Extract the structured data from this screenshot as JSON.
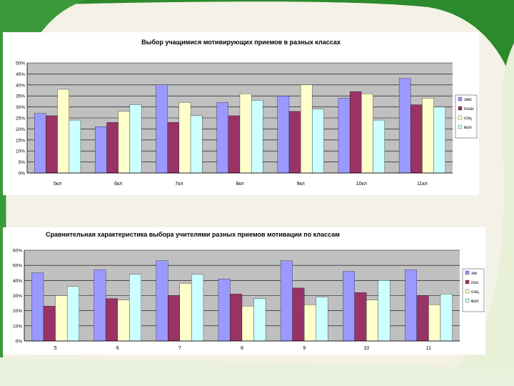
{
  "colors": {
    "plot_bg": "#c0c0c0",
    "grid": "#000000",
    "series": [
      "#9999ff",
      "#993366",
      "#ffffcc",
      "#ccffff"
    ],
    "frame_green": "#2f8f2f",
    "frame_light": "#e9f2dc"
  },
  "chart_data": [
    {
      "type": "bar",
      "title": "Выбор учащимися мотивирующих приемов в разных классах",
      "categories": [
        "5кл",
        "6кл",
        "7кл",
        "8кл",
        "9кл",
        "10кл",
        "11кл"
      ],
      "yticks": [
        "0%",
        "5%",
        "10%",
        "15%",
        "20%",
        "25%",
        "30%",
        "35%",
        "40%",
        "45%",
        "50%"
      ],
      "ylim": [
        0,
        50
      ],
      "series": [
        {
          "name": "эмс",
          "values": [
            27,
            21,
            40,
            32,
            35,
            34,
            43
          ]
        },
        {
          "name": "позн",
          "values": [
            26,
            23,
            23,
            26,
            28,
            37,
            31
          ]
        },
        {
          "name": "соц",
          "values": [
            38,
            28,
            32,
            36,
            40,
            36,
            34
          ]
        },
        {
          "name": "вол",
          "values": [
            24,
            31,
            26,
            33,
            29,
            24,
            30
          ]
        }
      ],
      "legend": "right"
    },
    {
      "type": "bar",
      "title": "Сравнительная характеристика выбора учителями разных приемов мотивации по классам",
      "categories": [
        "5",
        "6",
        "7",
        "8",
        "9",
        "10",
        "11"
      ],
      "yticks": [
        "0%",
        "10%",
        "20%",
        "30%",
        "40%",
        "50%",
        "60%"
      ],
      "ylim": [
        0,
        60
      ],
      "series": [
        {
          "name": "эм",
          "values": [
            45,
            47,
            53,
            41,
            53,
            46,
            47
          ]
        },
        {
          "name": "поз",
          "values": [
            23,
            28,
            30,
            31,
            35,
            32,
            30
          ]
        },
        {
          "name": "соц",
          "values": [
            30,
            27,
            38,
            23,
            24,
            27,
            24
          ]
        },
        {
          "name": "вол",
          "values": [
            36,
            44,
            44,
            28,
            29,
            40,
            31
          ]
        }
      ],
      "legend": "right"
    }
  ]
}
